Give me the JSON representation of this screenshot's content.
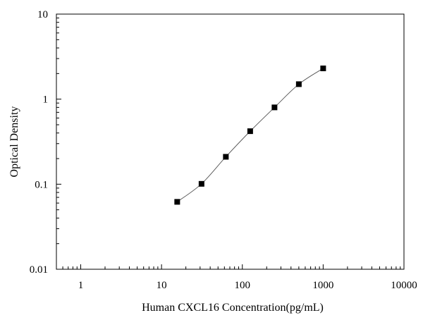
{
  "chart_data": {
    "type": "scatter",
    "title": "",
    "xlabel": "Human CXCL16 Concentration(pg/mL)",
    "ylabel": "Optical Density",
    "x_scale": "log",
    "y_scale": "log",
    "xlim": [
      0.5,
      10000
    ],
    "ylim": [
      0.01,
      10
    ],
    "x_ticks": [
      1,
      10,
      100,
      1000,
      10000
    ],
    "x_tick_labels": [
      "1",
      "10",
      "100",
      "1000",
      "10000"
    ],
    "y_ticks": [
      0.01,
      0.1,
      1,
      10
    ],
    "y_tick_labels": [
      "0.01",
      "0.1",
      "1",
      "10"
    ],
    "grid": false,
    "legend": "none",
    "series": [
      {
        "marker": "square",
        "line": "smooth",
        "color": "#000000",
        "x": [
          15.625,
          31.25,
          62.5,
          125,
          250,
          500,
          1000
        ],
        "y": [
          0.062,
          0.101,
          0.21,
          0.42,
          0.8,
          1.5,
          2.3
        ]
      }
    ]
  }
}
